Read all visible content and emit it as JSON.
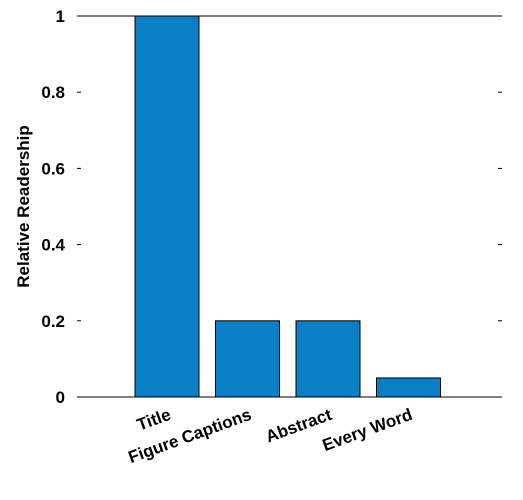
{
  "chart_data": {
    "type": "bar",
    "categories": [
      "Title",
      "Figure Captions",
      "Abstract",
      "Every Word"
    ],
    "values": [
      1.0,
      0.2,
      0.2,
      0.05
    ],
    "title": "",
    "xlabel": "",
    "ylabel": "Relative Readership",
    "ylim": [
      0,
      1
    ],
    "yticks": [
      "0",
      "0.2",
      "0.4",
      "0.6",
      "0.8",
      "1"
    ],
    "grid": false,
    "legend": "none",
    "bar_color": "#0a7fc8",
    "edge_color": "#000000"
  }
}
